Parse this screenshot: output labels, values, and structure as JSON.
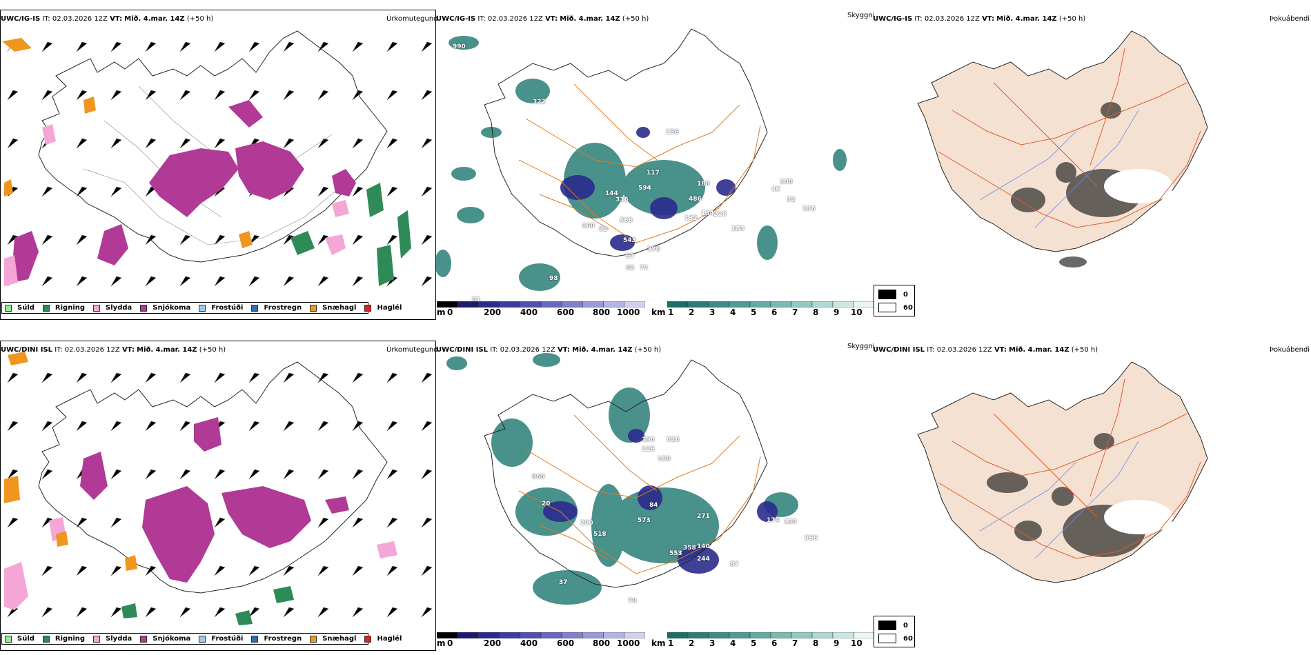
{
  "rows": [
    {
      "model": "UWC/IG-IS",
      "it_label": "IT:",
      "it_value": "02.03.2026 12Z",
      "vt_label": "VT:",
      "vt_value": "Mið. 4.mar. 14Z",
      "lead": "(+50 h)",
      "titles": {
        "precip": "Úrkomutegund",
        "cloud": "Skyggni",
        "fog": "Þokuábendi"
      },
      "cloud_numbers": [
        "990",
        "322",
        "117",
        "188",
        "144",
        "336",
        "594",
        "486",
        "566",
        "92",
        "160",
        "134",
        "218",
        "543",
        "97",
        "370",
        "62",
        "71",
        "183",
        "108",
        "98",
        "32",
        "132",
        "46",
        "136",
        "81",
        "136"
      ]
    },
    {
      "model": "UWC/DINI ISL",
      "it_label": "IT:",
      "it_value": "02.03.2026 12Z",
      "vt_label": "VT:",
      "vt_value": "Mið. 4.mar. 14Z",
      "lead": "(+50 h)",
      "titles": {
        "precip": "Úrkomutegund",
        "cloud": "Skyggni",
        "fog": "Þokuábendi"
      },
      "cloud_numbers": [
        "196",
        "626",
        "126",
        "180",
        "965",
        "20",
        "84",
        "271",
        "200",
        "573",
        "174",
        "518",
        "140",
        "358",
        "553",
        "244",
        "87",
        "37",
        "78",
        "966",
        "133"
      ]
    }
  ],
  "precip_legend": [
    {
      "label": "Súld",
      "color": "#90ee90"
    },
    {
      "label": "Rigning",
      "color": "#2e8b57"
    },
    {
      "label": "Slydda",
      "color": "#f4a6d7"
    },
    {
      "label": "Snjókoma",
      "color": "#b03a96"
    },
    {
      "label": "Frostúði",
      "color": "#9ec8f0"
    },
    {
      "label": "Frostregn",
      "color": "#2f6fb0"
    },
    {
      "label": "Snæhagl",
      "color": "#f0961e"
    },
    {
      "label": "Haglél",
      "color": "#e0201c"
    }
  ],
  "cloudbase_bar": {
    "unit": "m",
    "ticks": [
      "0",
      "200",
      "400",
      "600",
      "800",
      "1000"
    ],
    "colors": [
      "#000000",
      "#1a1a6e",
      "#2b2b8c",
      "#3c3ca0",
      "#5050b0",
      "#6868c0",
      "#8080cc",
      "#9a9ad8",
      "#b4b4e4",
      "#d0d0f0"
    ]
  },
  "visibility_bar": {
    "unit": "km",
    "ticks": [
      "1",
      "2",
      "3",
      "4",
      "5",
      "6",
      "7",
      "8",
      "9",
      "10"
    ],
    "colors": [
      "#1c6e68",
      "#2a7e77",
      "#3b8d86",
      "#4e9c95",
      "#63aaa4",
      "#7bb9b3",
      "#94c8c3",
      "#afd7d3",
      "#cce6e3",
      "#eaf5f4"
    ]
  },
  "fog_legend": [
    {
      "label": "0",
      "color": "#000000"
    },
    {
      "label": "60",
      "color": "#ffffff"
    }
  ]
}
